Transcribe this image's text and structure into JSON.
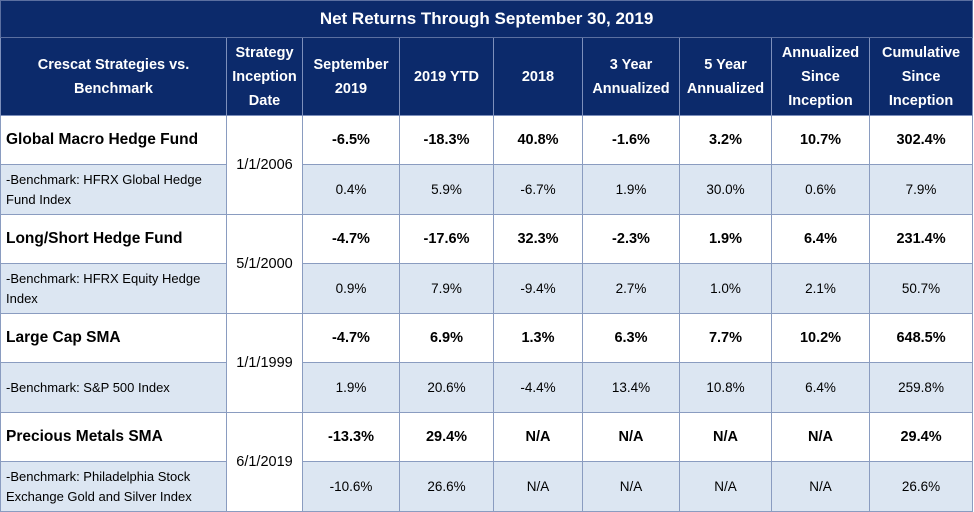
{
  "title": "Net Returns Through September 30, 2019",
  "headers": [
    "Crescat Strategies vs.\nBenchmark",
    "Strategy\nInception\nDate",
    "September\n2019",
    "2019 YTD",
    "2018",
    "3 Year\nAnnualized",
    "5 Year\nAnnualized",
    "Annualized\nSince\nInception",
    "Cumulative\nSince\nInception"
  ],
  "groups": [
    {
      "inception": "1/1/2006",
      "strategy": {
        "name": "Global Macro Hedge Fund",
        "values": [
          "-6.5%",
          "-18.3%",
          "40.8%",
          "-1.6%",
          "3.2%",
          "10.7%",
          "302.4%"
        ]
      },
      "benchmark": {
        "name": "-Benchmark: HFRX Global Hedge Fund Index",
        "values": [
          "0.4%",
          "5.9%",
          "-6.7%",
          "1.9%",
          "30.0%",
          "0.6%",
          "7.9%"
        ]
      }
    },
    {
      "inception": "5/1/2000",
      "strategy": {
        "name": "Long/Short Hedge Fund",
        "values": [
          "-4.7%",
          "-17.6%",
          "32.3%",
          "-2.3%",
          "1.9%",
          "6.4%",
          "231.4%"
        ]
      },
      "benchmark": {
        "name": "-Benchmark: HFRX Equity Hedge Index",
        "values": [
          "0.9%",
          "7.9%",
          "-9.4%",
          "2.7%",
          "1.0%",
          "2.1%",
          "50.7%"
        ]
      }
    },
    {
      "inception": "1/1/1999",
      "strategy": {
        "name": "Large Cap SMA",
        "values": [
          "-4.7%",
          "6.9%",
          "1.3%",
          "6.3%",
          "7.7%",
          "10.2%",
          "648.5%"
        ]
      },
      "benchmark": {
        "name": "-Benchmark: S&P 500 Index",
        "values": [
          "1.9%",
          "20.6%",
          "-4.4%",
          "13.4%",
          "10.8%",
          "6.4%",
          "259.8%"
        ]
      }
    },
    {
      "inception": "6/1/2019",
      "strategy": {
        "name": "Precious Metals SMA",
        "values": [
          "-13.3%",
          "29.4%",
          "N/A",
          "N/A",
          "N/A",
          "N/A",
          "29.4%"
        ]
      },
      "benchmark": {
        "name": "-Benchmark: Philadelphia Stock Exchange Gold and Silver Index",
        "values": [
          "-10.6%",
          "26.6%",
          "N/A",
          "N/A",
          "N/A",
          "N/A",
          "26.6%"
        ]
      }
    }
  ],
  "colors": {
    "header_bg": "#0c2a6b",
    "benchmark_bg": "#dce6f2"
  }
}
